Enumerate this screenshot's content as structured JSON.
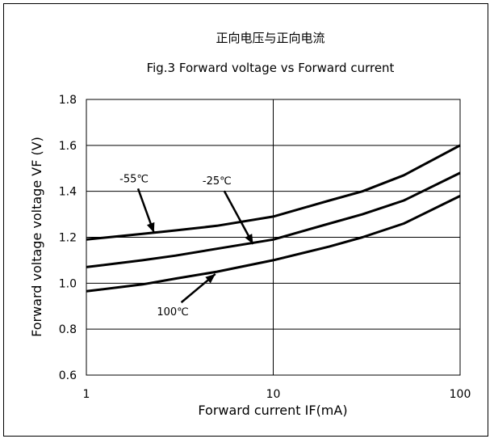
{
  "chart_data": {
    "type": "line",
    "title": "正向电压与正向电流",
    "subtitle": "Fig.3  Forward voltage vs Forward current",
    "xlabel": "Forward current IF(mA)",
    "ylabel": "Forward voltage voltage VF (V)",
    "xscale": "log",
    "xlim": [
      1,
      100
    ],
    "ylim": [
      0.6,
      1.8
    ],
    "x_ticks": [
      1,
      10,
      100
    ],
    "x_tick_labels": [
      "1",
      "10",
      "100"
    ],
    "y_ticks": [
      0.6,
      0.8,
      1.0,
      1.2,
      1.4,
      1.6,
      1.8
    ],
    "y_tick_labels": [
      "0.6",
      "0.8",
      "1.0",
      "1.2",
      "1.4",
      "1.6",
      "1.8"
    ],
    "grid": true,
    "series": [
      {
        "name": "-55℃",
        "x": [
          1,
          2,
          3,
          5,
          10,
          20,
          30,
          50,
          100
        ],
        "values": [
          1.19,
          1.215,
          1.23,
          1.25,
          1.29,
          1.36,
          1.4,
          1.47,
          1.6
        ]
      },
      {
        "name": "-25℃",
        "x": [
          1,
          2,
          3,
          5,
          10,
          20,
          30,
          50,
          100
        ],
        "values": [
          1.07,
          1.1,
          1.12,
          1.15,
          1.19,
          1.26,
          1.3,
          1.36,
          1.48
        ]
      },
      {
        "name": "100℃",
        "x": [
          1,
          2,
          3,
          5,
          10,
          20,
          30,
          50,
          100
        ],
        "values": [
          0.965,
          0.995,
          1.02,
          1.05,
          1.1,
          1.16,
          1.2,
          1.26,
          1.38
        ]
      }
    ],
    "annotations": [
      {
        "text": "-55℃",
        "x": 1.8,
        "y": 1.44,
        "arrow_to": {
          "x": 2.3,
          "y": 1.22
        }
      },
      {
        "text": "-25℃",
        "x": 5.0,
        "y": 1.43,
        "arrow_to": {
          "x": 7.8,
          "y": 1.17
        }
      },
      {
        "text": "100℃",
        "x": 2.9,
        "y": 0.86,
        "arrow_to": {
          "x": 4.9,
          "y": 1.04
        }
      }
    ]
  }
}
